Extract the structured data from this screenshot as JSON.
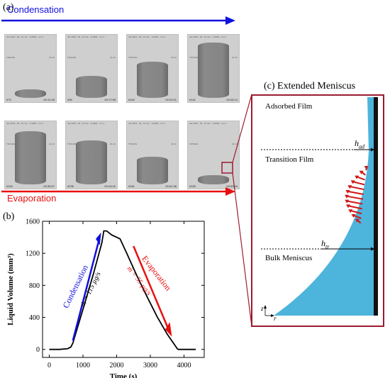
{
  "panel_a": {
    "label": "(a)",
    "condensation_label": "Condensation",
    "evaporation_label": "Evaporation",
    "header_text": "Jan 2015 - #2 - 10 mm - H-6061 - run 1",
    "side_left": "T0/3mPa",
    "side_right": "21.1C",
    "condensation_frames": [
      {
        "frame_id": "#73",
        "time": "00:12:45",
        "fill": 0.15
      },
      {
        "frame_id": "#96",
        "time": "00:17:58",
        "fill": 0.38
      },
      {
        "frame_id": "#118",
        "time": "00:22:01",
        "fill": 0.62
      },
      {
        "frame_id": "#141",
        "time": "00:26:14",
        "fill": 0.95
      }
    ],
    "evaporation_frames": [
      {
        "frame_id": "#192",
        "time": "00:35:57",
        "fill": 0.92
      },
      {
        "frame_id": "#236",
        "time": "00:43:42",
        "fill": 0.75
      },
      {
        "frame_id": "#281",
        "time": "00:51:38",
        "fill": 0.48
      },
      {
        "frame_id": "#326",
        "time": "00:59:34",
        "fill": 0.16
      }
    ],
    "colors": {
      "condensation": "#1010e0",
      "evaporation": "#e81010",
      "highlight": "#9b1b30"
    }
  },
  "panel_b": {
    "label": "(b)",
    "condensation_note": "Condensation",
    "condensation_rate": "ṁ = 115 µg/s",
    "evaporation_note": "Evaporation",
    "evaporation_rate": "ṁ = 55 µg/s"
  },
  "panel_c": {
    "title": "(c) Extended Meniscus",
    "adsorbed_film": "Adsorbed Film",
    "transition_film": "Transition Film",
    "bulk_meniscus": "Bulk Meniscus",
    "h_ad_base": "h",
    "h_ad_sub": "ad",
    "h_tr_base": "h",
    "h_tr_sub": "tr",
    "axis_z": "z",
    "axis_r": "r",
    "colors": {
      "liquid": "#4db4dc",
      "wall": "#111111",
      "flux": "#d01818",
      "border": "#9b1b30"
    }
  },
  "chart_data": {
    "type": "line",
    "xlabel": "Time (s)",
    "ylabel": "Liquid Volume (mm³)",
    "xlim": [
      -200,
      4600
    ],
    "ylim": [
      -100,
      1600
    ],
    "xticks": [
      0,
      1000,
      2000,
      3000,
      4000
    ],
    "yticks": [
      0,
      400,
      800,
      1200,
      1600
    ],
    "grid": false,
    "series": [
      {
        "x": [
          0,
          300,
          550,
          640,
          700,
          1000,
          1300,
          1560,
          1620,
          1700,
          1850,
          2000,
          2100,
          2300,
          2600,
          2900,
          3200,
          3500,
          3800,
          3830,
          3900,
          4100,
          4350
        ],
        "y": [
          0,
          0,
          10,
          30,
          80,
          500,
          930,
          1330,
          1480,
          1480,
          1430,
          1400,
          1380,
          1200,
          920,
          660,
          410,
          190,
          10,
          0,
          0,
          0,
          0
        ]
      }
    ]
  }
}
